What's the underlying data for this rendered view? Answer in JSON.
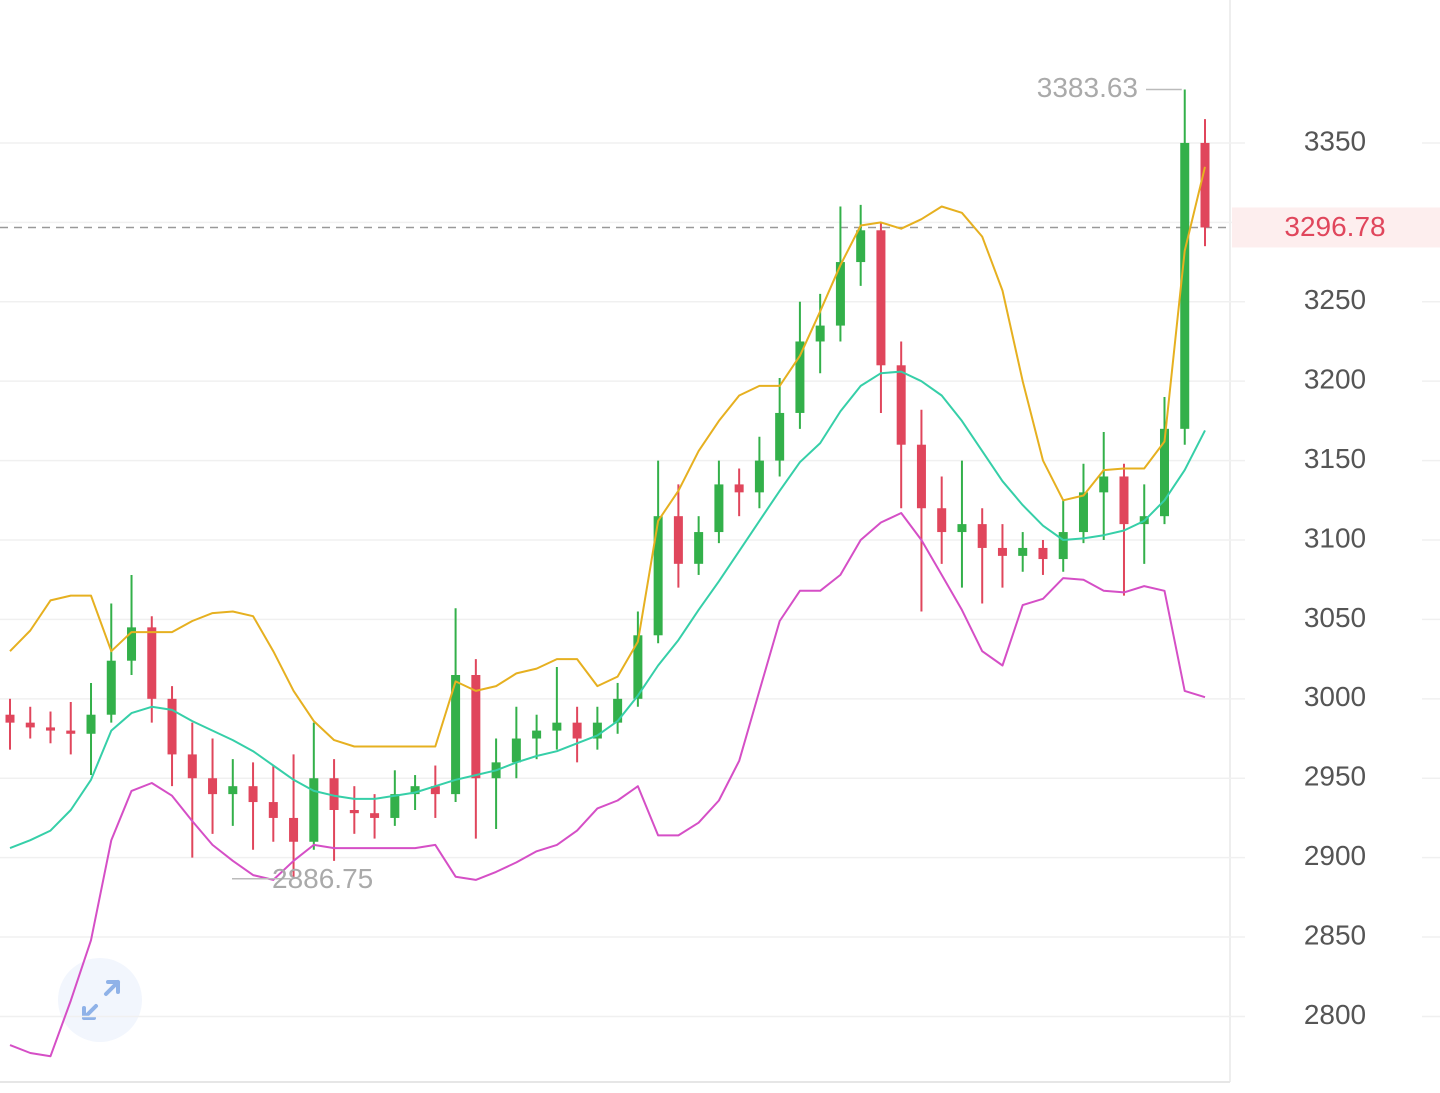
{
  "chart_data": {
    "type": "candlestick",
    "ylim": [
      2760,
      3440
    ],
    "yticks": [
      2800,
      2850,
      2900,
      2950,
      3000,
      3050,
      3100,
      3150,
      3200,
      3250,
      3300,
      3350
    ],
    "grid": true,
    "up_color": "#33b04a",
    "down_color": "#e0465c",
    "candles": [
      [
        2990,
        3000,
        2968,
        2985
      ],
      [
        2985,
        2995,
        2975,
        2982
      ],
      [
        2982,
        2992,
        2972,
        2980
      ],
      [
        2980,
        2998,
        2965,
        2978
      ],
      [
        2978,
        3010,
        2952,
        2990
      ],
      [
        2990,
        3060,
        2985,
        3024
      ],
      [
        3024,
        3078,
        3015,
        3045
      ],
      [
        3045,
        3052,
        2985,
        3000
      ],
      [
        3000,
        3008,
        2945,
        2965
      ],
      [
        2965,
        2985,
        2900,
        2950
      ],
      [
        2950,
        2975,
        2915,
        2940
      ],
      [
        2940,
        2962,
        2920,
        2945
      ],
      [
        2945,
        2960,
        2905,
        2935
      ],
      [
        2935,
        2958,
        2910,
        2925
      ],
      [
        2925,
        2965,
        2886.75,
        2910
      ],
      [
        2910,
        2985,
        2905,
        2950
      ],
      [
        2950,
        2962,
        2898,
        2930
      ],
      [
        2930,
        2945,
        2915,
        2928
      ],
      [
        2928,
        2940,
        2912,
        2925
      ],
      [
        2925,
        2955,
        2920,
        2940
      ],
      [
        2940,
        2952,
        2930,
        2945
      ],
      [
        2945,
        2958,
        2925,
        2940
      ],
      [
        2940,
        3057,
        2935,
        3015
      ],
      [
        3015,
        3025,
        2912,
        2950
      ],
      [
        2950,
        2975,
        2918,
        2960
      ],
      [
        2960,
        2995,
        2950,
        2975
      ],
      [
        2975,
        2990,
        2962,
        2980
      ],
      [
        2980,
        3020,
        2968,
        2985
      ],
      [
        2985,
        2995,
        2960,
        2975
      ],
      [
        2975,
        2995,
        2968,
        2985
      ],
      [
        2985,
        3010,
        2978,
        3000
      ],
      [
        3000,
        3055,
        2995,
        3040
      ],
      [
        3040,
        3150,
        3035,
        3115
      ],
      [
        3115,
        3135,
        3070,
        3085
      ],
      [
        3085,
        3115,
        3078,
        3105
      ],
      [
        3105,
        3150,
        3098,
        3135
      ],
      [
        3135,
        3145,
        3115,
        3130
      ],
      [
        3130,
        3165,
        3120,
        3150
      ],
      [
        3150,
        3202,
        3140,
        3180
      ],
      [
        3180,
        3250,
        3170,
        3225
      ],
      [
        3225,
        3255,
        3205,
        3235
      ],
      [
        3235,
        3310,
        3225,
        3275
      ],
      [
        3275,
        3311,
        3260,
        3295
      ],
      [
        3295,
        3300,
        3180,
        3210
      ],
      [
        3210,
        3225,
        3120,
        3160
      ],
      [
        3160,
        3182,
        3055,
        3120
      ],
      [
        3120,
        3140,
        3085,
        3105
      ],
      [
        3105,
        3150,
        3070,
        3110
      ],
      [
        3110,
        3120,
        3060,
        3095
      ],
      [
        3095,
        3110,
        3070,
        3090
      ],
      [
        3090,
        3105,
        3080,
        3095
      ],
      [
        3095,
        3100,
        3078,
        3088
      ],
      [
        3088,
        3125,
        3080,
        3105
      ],
      [
        3105,
        3148,
        3098,
        3130
      ],
      [
        3130,
        3168,
        3100,
        3140
      ],
      [
        3140,
        3148,
        3065,
        3110
      ],
      [
        3110,
        3135,
        3085,
        3115
      ],
      [
        3115,
        3190,
        3110,
        3170
      ],
      [
        3170,
        3383.63,
        3160,
        3350
      ],
      [
        3350,
        3365,
        3285,
        3296.78
      ]
    ],
    "bands": [
      {
        "color": "#e6b020",
        "values": [
          3030,
          3043,
          3062,
          3065,
          3065,
          3030,
          3042,
          3042,
          3042,
          3049,
          3054,
          3055,
          3052,
          3030,
          3005,
          2986,
          2974,
          2970,
          2970,
          2970,
          2970,
          2970,
          3011,
          3005,
          3008,
          3016,
          3019,
          3025,
          3025,
          3008,
          3014,
          3036,
          3112,
          3131,
          3156,
          3175,
          3191,
          3197,
          3197,
          3216,
          3244,
          3273,
          3298,
          3300,
          3296,
          3302,
          3310,
          3306,
          3291,
          3257,
          3200,
          3150,
          3125,
          3128,
          3144,
          3145,
          3145,
          3162,
          3282,
          3335
        ]
      },
      {
        "color": "#36cfa8",
        "values": [
          2906,
          2911,
          2917,
          2930,
          2949,
          2980,
          2991,
          2995,
          2993,
          2986,
          2980,
          2974,
          2967,
          2958,
          2949,
          2942,
          2939,
          2937,
          2937,
          2939,
          2941,
          2945,
          2949,
          2952,
          2955,
          2960,
          2964,
          2967,
          2972,
          2977,
          2986,
          3002,
          3021,
          3037,
          3056,
          3074,
          3093,
          3112,
          3131,
          3149,
          3161,
          3181,
          3197,
          3205,
          3206,
          3200,
          3191,
          3175,
          3156,
          3137,
          3122,
          3109,
          3100,
          3101,
          3103,
          3106,
          3112,
          3125,
          3144,
          3169
        ]
      },
      {
        "color": "#d54fc6",
        "values": [
          2782,
          2777,
          2775,
          2810,
          2848,
          2911,
          2942,
          2947,
          2939,
          2923,
          2908,
          2898,
          2889,
          2886,
          2898,
          2908,
          2906,
          2906,
          2906,
          2906,
          2906,
          2908,
          2888,
          2886,
          2891,
          2897,
          2904,
          2908,
          2917,
          2931,
          2936,
          2945,
          2914,
          2914,
          2922,
          2936,
          2961,
          3005,
          3049,
          3068,
          3068,
          3078,
          3100,
          3111,
          3117,
          3100,
          3078,
          3056,
          3030,
          3021,
          3059,
          3063,
          3076,
          3075,
          3068,
          3067,
          3071,
          3068,
          3005,
          3001
        ]
      }
    ],
    "max_label": 3383.63,
    "min_label": 2886.75,
    "last_price": 3296.78,
    "last_price_color": "#e0465c"
  }
}
